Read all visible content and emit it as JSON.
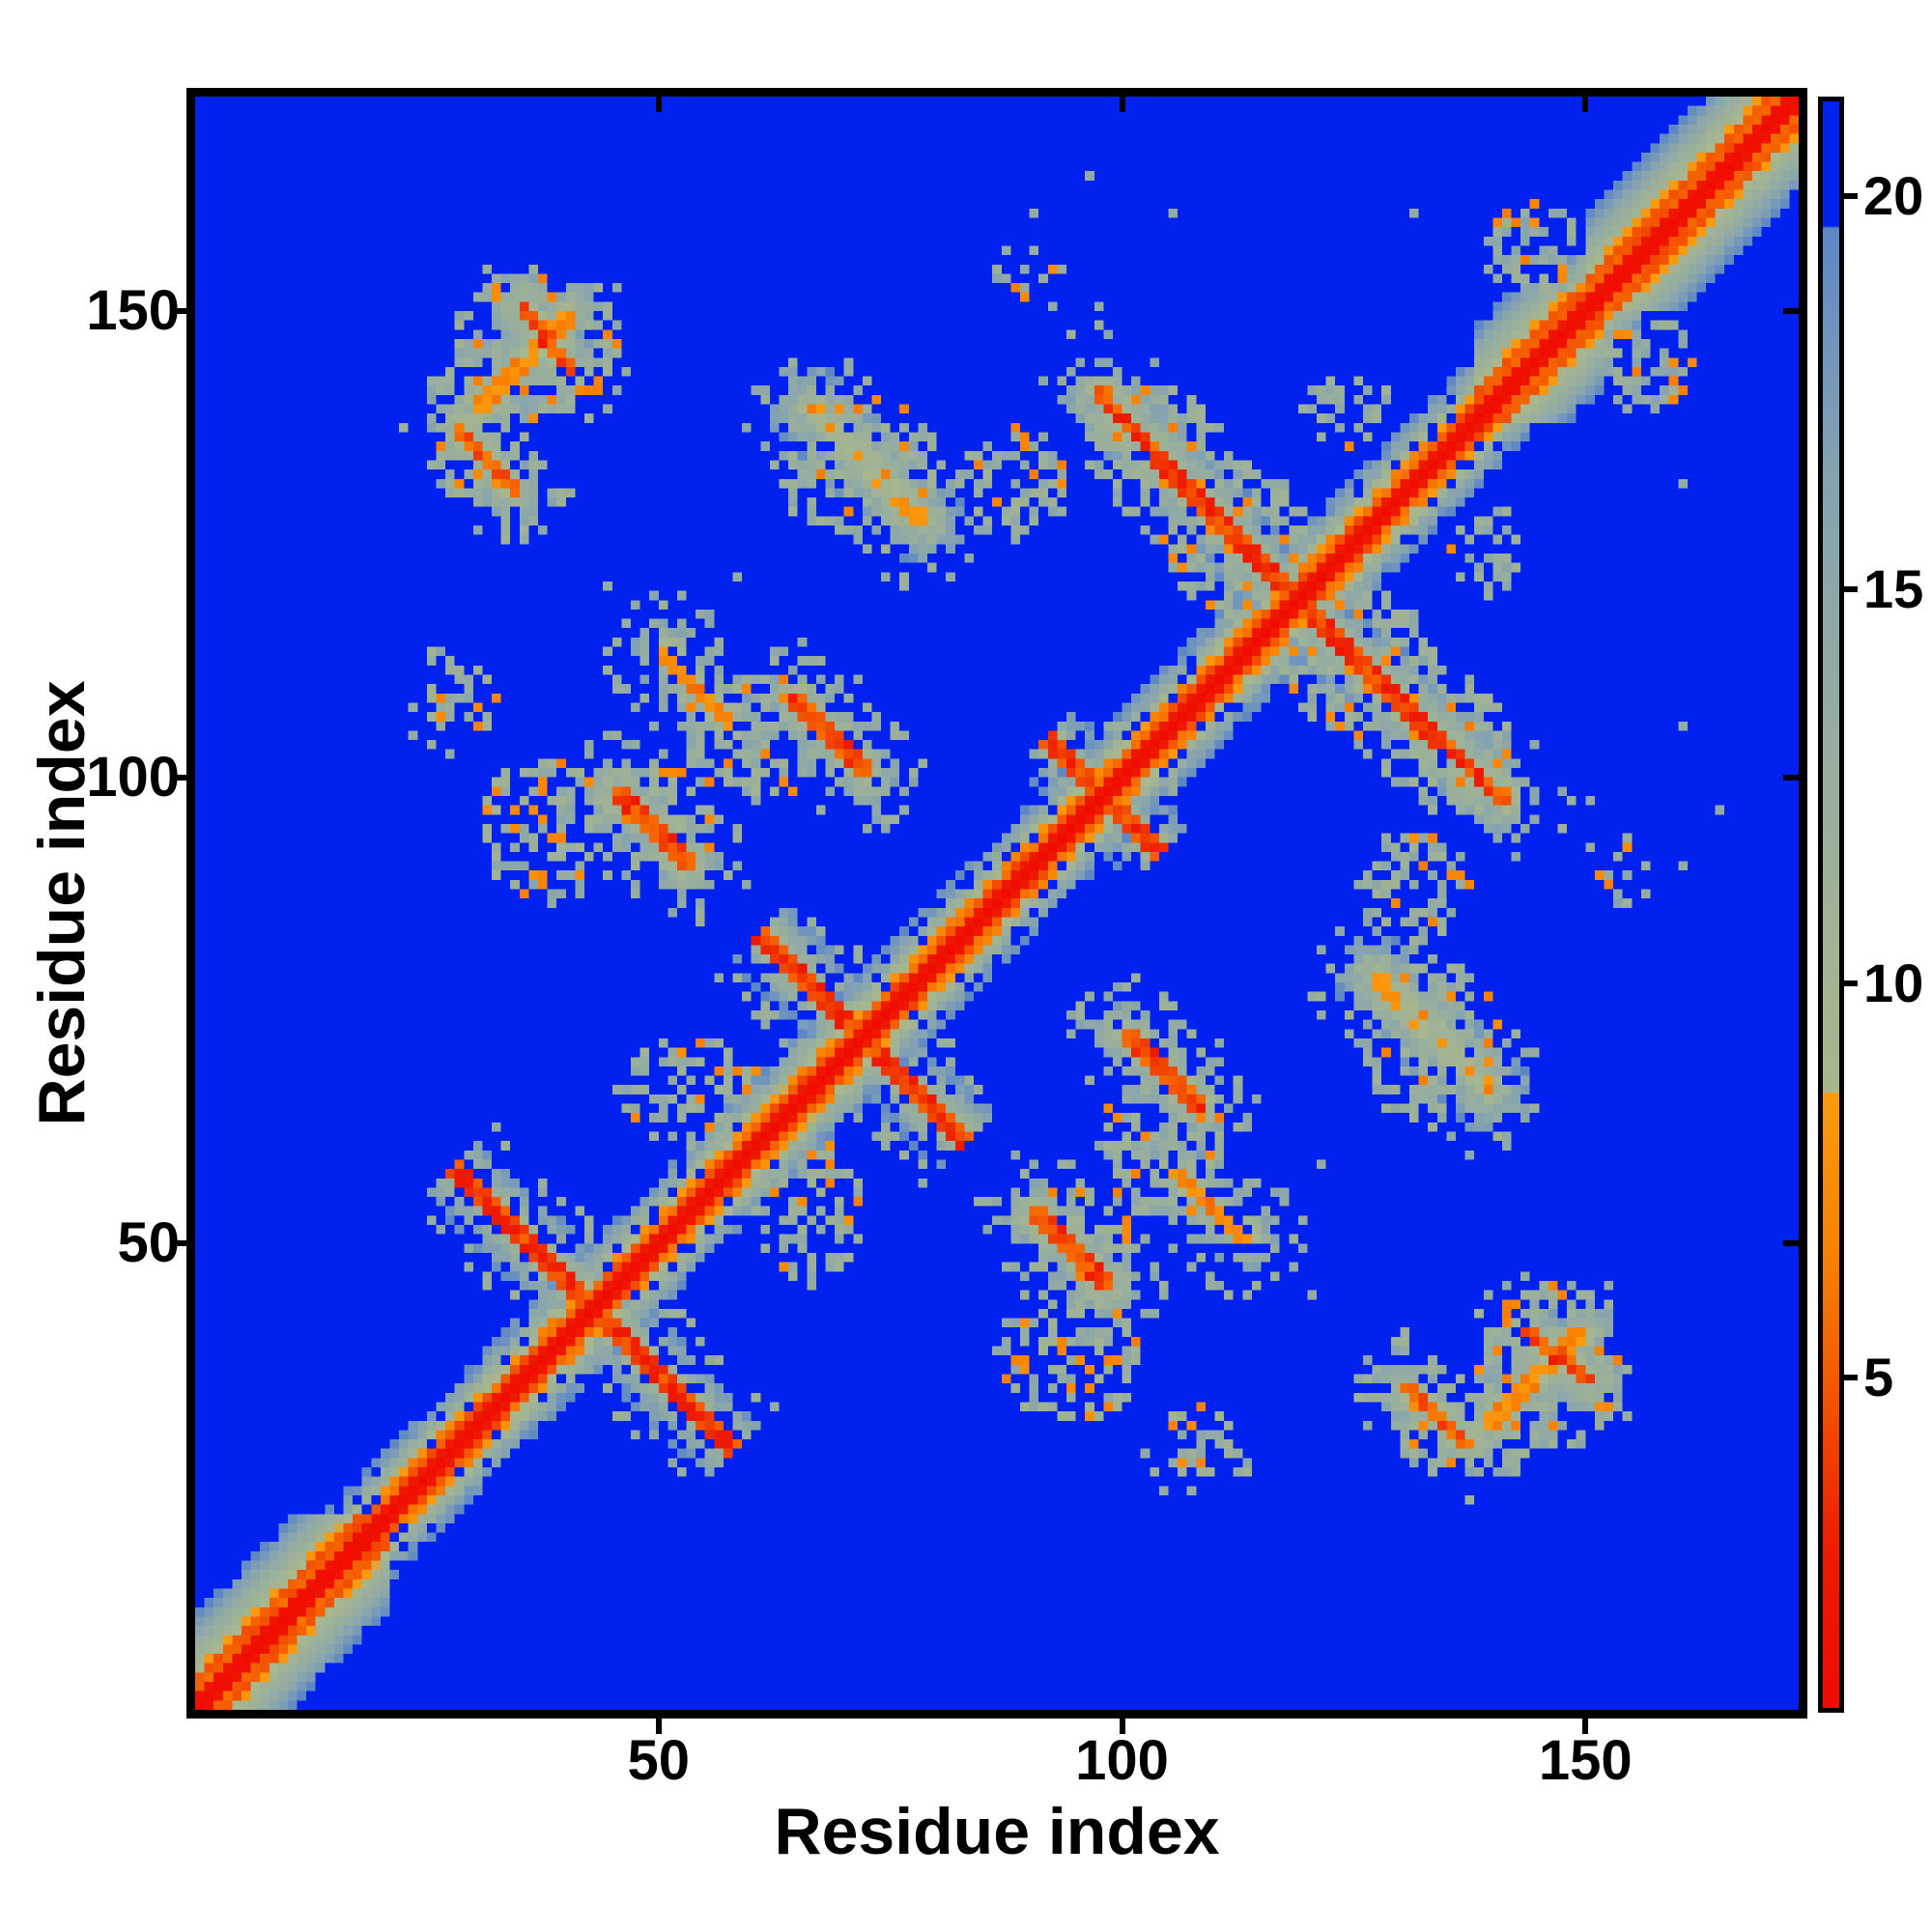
{
  "chart_data": {
    "type": "heatmap",
    "title": "",
    "xlabel": "Residue index",
    "ylabel": "Residue index",
    "x_ticks": [
      50,
      100,
      150
    ],
    "y_ticks": [
      50,
      100,
      150
    ],
    "axis_range": [
      0,
      173
    ],
    "n_residues": 173,
    "colorbar": {
      "ticks": [
        5,
        10,
        15,
        20
      ],
      "vmin": 0.8,
      "vmax": 21.2,
      "orange_green_boundary": 8.6,
      "blue_cap_value": 19.6
    },
    "colors": {
      "background_far_blue": "#0021f0",
      "diagonal_red": "#ee1c00",
      "contact_orange": "#f98000",
      "shell_sage": "#9fb296",
      "shell_steel": "#6d92c0",
      "frame_black": "#000000",
      "canvas_white": "#ffffff"
    },
    "colormap_stops": [
      [
        1.0,
        "#f10c00"
      ],
      [
        2.8,
        "#ee1c00"
      ],
      [
        4.0,
        "#f13e00"
      ],
      [
        5.2,
        "#f56000"
      ],
      [
        6.4,
        "#f87e00"
      ],
      [
        8.6,
        "#fb9b0e"
      ],
      [
        8.62,
        "#a9b78c"
      ],
      [
        11.0,
        "#9fb296"
      ],
      [
        14.0,
        "#92aaa5"
      ],
      [
        16.5,
        "#84a2b1"
      ],
      [
        18.5,
        "#6d92c0"
      ],
      [
        19.6,
        "#5d86c4"
      ],
      [
        19.62,
        "#0021f0"
      ],
      [
        21.5,
        "#0021f0"
      ]
    ],
    "matrix_spec": {
      "seed": 20,
      "diagonal_profile": [
        1.0,
        2.2,
        5.2,
        7.8,
        11.0,
        14.0,
        17.0,
        19.2
      ],
      "helix_profile": [
        1.0,
        1.8,
        4.6,
        5.8,
        7.6,
        10.5,
        12.0,
        13.5,
        15.5,
        17.5,
        19.3
      ],
      "helices": [
        [
          0,
          20
        ],
        [
          138,
          151
        ],
        [
          150,
          173
        ]
      ],
      "hairpins": [
        {
          "center": 42.5,
          "span": 15
        },
        {
          "center": 71.5,
          "span": 11
        },
        {
          "center": 118.5,
          "span": 15
        },
        {
          "center": 97.5,
          "span": 6
        }
      ],
      "contacts": [
        {
          "x": [
            45,
            53
          ],
          "y": [
            98,
            90
          ],
          "core": 4.2,
          "halo": 3.5
        },
        {
          "x": [
            64,
            72
          ],
          "y": [
            108,
            100
          ],
          "core": 4.2,
          "halo": 3.5
        },
        {
          "x": [
            97,
            107
          ],
          "y": [
            141,
            130
          ],
          "core": 4.2,
          "halo": 4.0
        },
        {
          "x": [
            28,
            34
          ],
          "y": [
            137,
            130
          ],
          "core": 4.5,
          "halo": 3.0
        },
        {
          "x": [
            35,
            40
          ],
          "y": [
            150,
            143
          ],
          "core": 4.3,
          "halo": 3.5
        },
        {
          "x": [
            30,
            40
          ],
          "y": [
            139,
            149
          ],
          "core": 7.0,
          "halo": 3.0
        },
        {
          "x": [
            50,
            57
          ],
          "y": [
            113,
            105
          ],
          "core": 6.5,
          "halo": 3.5,
          "comb": true
        },
        {
          "x": [
            66,
            78
          ],
          "y": [
            139,
            127
          ],
          "core": 9.0,
          "halo": 4.5
        }
      ],
      "clouds": [
        [
          36,
          146,
          9,
          8,
          13.5,
          0.4
        ],
        [
          30,
          133,
          5,
          4,
          13.0,
          0.5
        ],
        [
          71,
          133,
          9,
          8,
          13.0,
          0.45
        ],
        [
          88,
          131,
          6,
          6,
          13.0,
          0.5
        ],
        [
          27,
          108,
          5,
          6,
          13.0,
          0.35
        ],
        [
          53,
          66,
          8,
          6,
          13.0,
          0.45
        ],
        [
          49,
          95,
          7,
          6,
          13.0,
          0.5
        ],
        [
          60,
          104,
          8,
          7,
          13.0,
          0.45
        ],
        [
          38,
          94,
          8,
          8,
          13.0,
          0.45
        ],
        [
          102,
          136,
          7,
          6,
          13.0,
          0.5
        ],
        [
          112,
          125,
          8,
          8,
          13.0,
          0.45
        ],
        [
          144,
          156,
          6,
          5,
          13.5,
          0.5
        ],
        [
          124,
          139,
          5,
          4,
          13.0,
          0.4
        ],
        [
          89,
          154,
          4,
          3,
          14.0,
          0.35
        ]
      ],
      "speckles": [
        [
          90,
          160
        ],
        [
          96,
          164
        ],
        [
          105,
          160
        ],
        [
          131,
          160
        ],
        [
          58,
          121
        ],
        [
          44,
          120
        ],
        [
          97,
          150
        ],
        [
          92,
          150
        ],
        [
          160,
          167
        ],
        [
          23,
          104
        ]
      ]
    }
  }
}
